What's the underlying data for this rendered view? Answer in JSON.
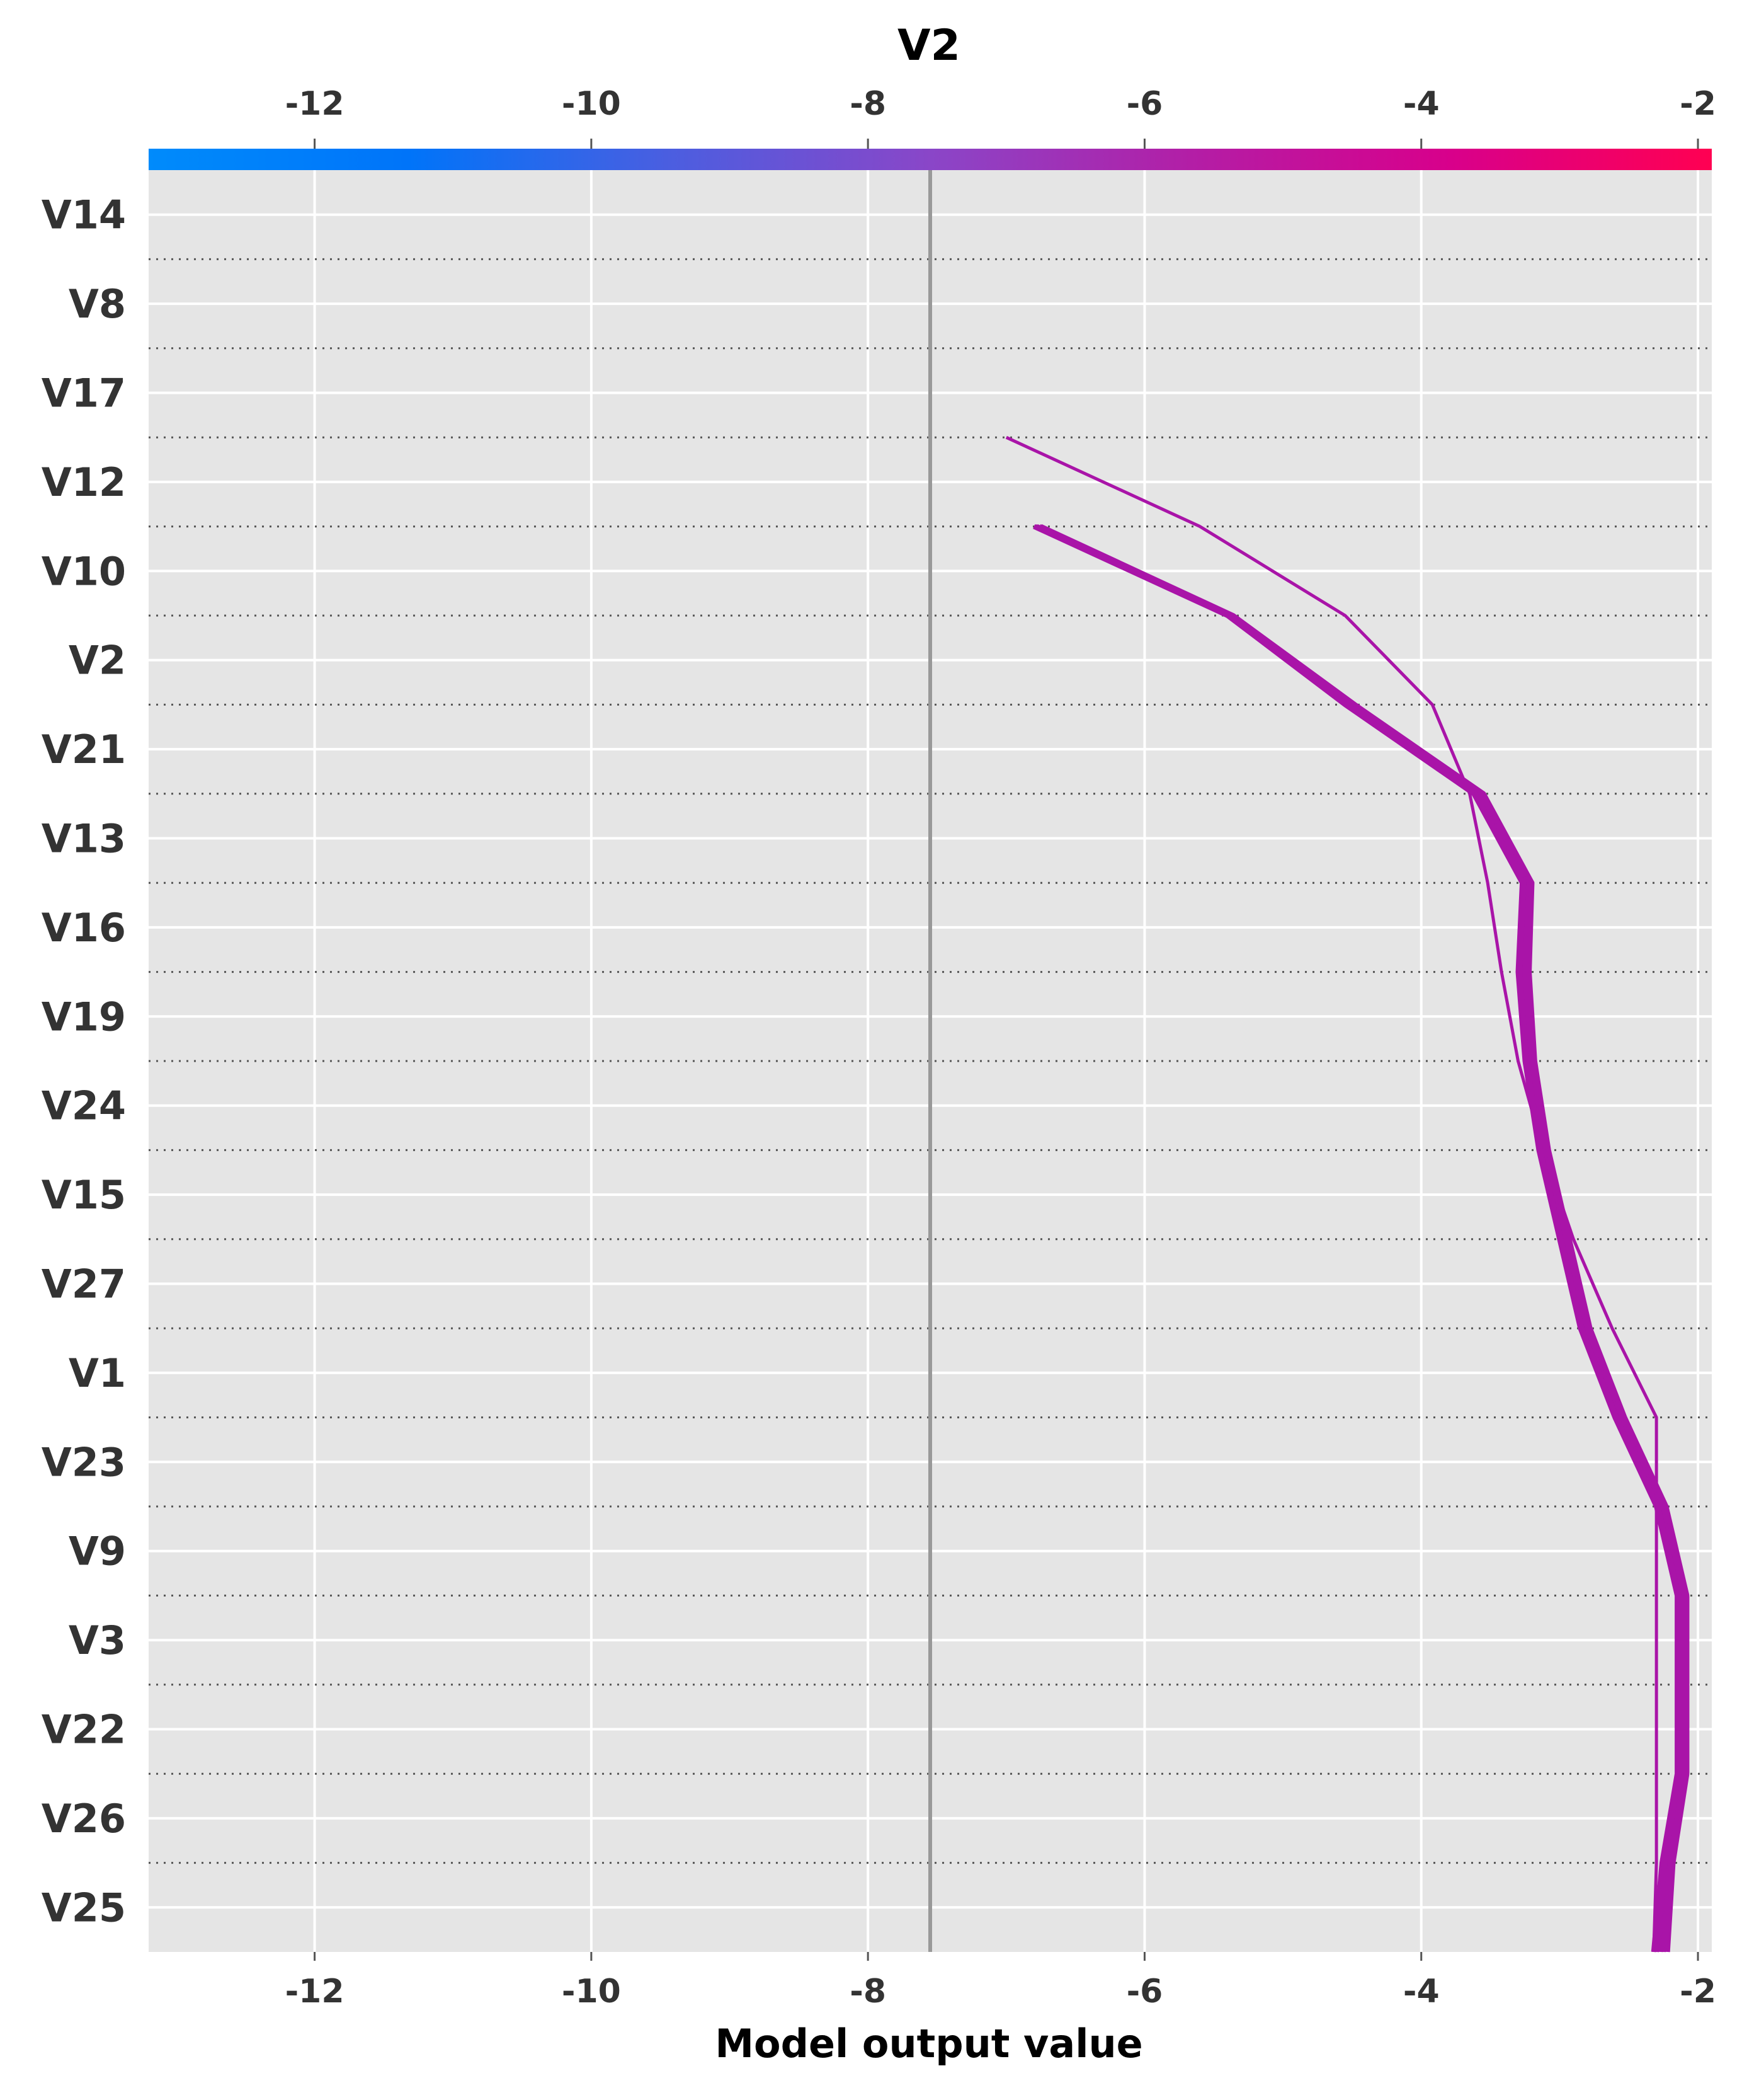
{
  "chart_data": {
    "type": "line",
    "title": "V2",
    "xlabel": "Model output value",
    "ylabel": "",
    "xlim": [
      -13.2,
      -1.9
    ],
    "x_ticks": [
      "-12",
      "-10",
      "-8",
      "-6",
      "-4",
      "-2"
    ],
    "x_tick_values": [
      -12,
      -10,
      -8,
      -6,
      -4,
      -2
    ],
    "base_value": -7.55,
    "features_bottom_to_top": [
      "V25",
      "V26",
      "V22",
      "V3",
      "V9",
      "V23",
      "V1",
      "V27",
      "V15",
      "V24",
      "V19",
      "V16",
      "V13",
      "V21",
      "V2",
      "V10",
      "V12",
      "V17",
      "V8",
      "V14"
    ],
    "colorbar": {
      "min": -13.2,
      "max": -1.9,
      "colors": [
        "#008bfb",
        "#0074f9",
        "#4b5ee0",
        "#8a46c8",
        "#b31ea6",
        "#d8008b",
        "#ff0052"
      ]
    },
    "line_color": "#a914a8",
    "series": [
      {
        "x": [
          -2.32,
          -2.3,
          -2.3,
          -2.3,
          -2.3,
          -2.3,
          -2.3,
          -2.62,
          -2.9,
          -3.12,
          -3.3,
          -3.42,
          -3.52,
          -3.65,
          -3.92,
          -4.55,
          -5.6,
          -7.0
        ]
      },
      {
        "x": [
          -2.32,
          -2.26,
          -2.15,
          -2.15,
          -2.15,
          -2.3,
          -2.6,
          -2.85,
          -3.0,
          -3.15,
          -3.25,
          -3.3,
          -3.27,
          -3.62,
          -4.55,
          -5.4,
          -6.8
        ]
      },
      {
        "x": [
          -2.27,
          -2.22,
          -2.12,
          -2.12,
          -2.12,
          -2.27,
          -2.57,
          -2.82,
          -2.97,
          -3.13,
          -3.23,
          -3.28,
          -3.25,
          -3.6,
          -4.52,
          -5.38,
          -6.78
        ]
      },
      {
        "x": [
          -2.25,
          -2.2,
          -2.1,
          -2.1,
          -2.1,
          -2.25,
          -2.55,
          -2.8,
          -2.95,
          -3.1,
          -3.2,
          -3.25,
          -3.22,
          -3.57,
          -4.5,
          -5.37,
          -6.76
        ]
      },
      {
        "x": [
          -2.22,
          -2.18,
          -2.08,
          -2.08,
          -2.08,
          -2.23,
          -2.53,
          -2.78,
          -2.93,
          -3.08,
          -3.18,
          -3.22,
          -3.2,
          -3.55,
          -4.48,
          -5.36,
          -6.75
        ]
      },
      {
        "x": [
          -2.3,
          -2.24,
          -2.14,
          -2.14,
          -2.14,
          -2.29,
          -2.59,
          -2.84,
          -2.99,
          -3.14,
          -3.24,
          -3.29,
          -3.26,
          -3.61,
          -4.54,
          -5.39,
          -6.79
        ]
      }
    ]
  }
}
